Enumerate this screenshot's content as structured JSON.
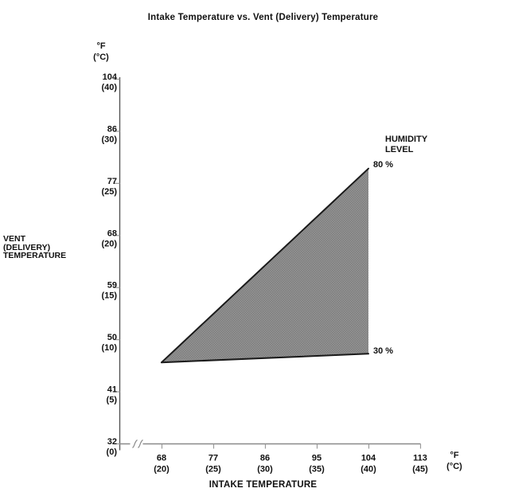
{
  "title": "Intake Temperature vs. Vent (Delivery) Temperature",
  "y_axis": {
    "title_lines": [
      "VENT",
      "(DELIVERY)",
      "TEMPERATURE"
    ],
    "unit_lines": [
      "°F",
      "(°C)"
    ]
  },
  "x_axis": {
    "title": "INTAKE TEMPERATURE",
    "unit_lines": [
      "°F",
      "(°C)"
    ]
  },
  "legend": {
    "title_lines": [
      "HUMIDITY",
      "LEVEL"
    ]
  },
  "chart_data": {
    "type": "area",
    "title": "Intake Temperature vs. Vent (Delivery) Temperature",
    "xlabel": "INTAKE TEMPERATURE",
    "ylabel": "VENT (DELIVERY) TEMPERATURE",
    "x_units": [
      "°F",
      "(°C)"
    ],
    "y_units": [
      "°F",
      "(°C)"
    ],
    "x_ticks_f": [
      68,
      77,
      86,
      95,
      104,
      113
    ],
    "x_ticks_c": [
      20,
      25,
      30,
      35,
      40,
      45
    ],
    "y_ticks_f": [
      104,
      86,
      77,
      68,
      59,
      50,
      41,
      32
    ],
    "y_ticks_c": [
      40,
      30,
      25,
      20,
      15,
      10,
      5,
      0
    ],
    "y_axis_note": "y ticks uniformly spaced; 95 (35) row omitted on y axis",
    "x_axis_break": true,
    "legend_title": "HUMIDITY LEVEL",
    "series": [
      {
        "name": "80 %",
        "humidity_percent": 80,
        "points_f_intake_vent": [
          [
            68,
            46
          ],
          [
            104,
            79.5
          ]
        ]
      },
      {
        "name": "30 %",
        "humidity_percent": 30,
        "points_f_intake_vent": [
          [
            68,
            46
          ],
          [
            104,
            47.5
          ]
        ]
      }
    ],
    "area_between_series": true,
    "grid": false,
    "legend_position": "right-of-area-apex"
  },
  "colors": {
    "area_gray": "#8c8c8c",
    "area_gray_dark": "#7d7d7d",
    "area_gray_light": "#959595",
    "line_black": "#1a1a1a",
    "axis_gray": "#8a8a8a",
    "tick_gray": "#9a9a9a",
    "text": "#111111",
    "background": "#ffffff"
  }
}
